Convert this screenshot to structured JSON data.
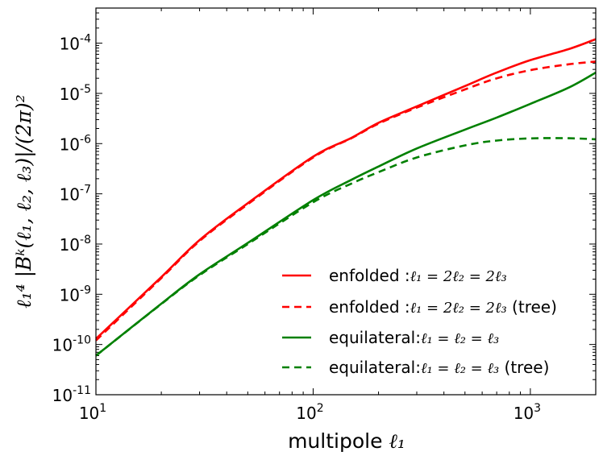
{
  "chart_data": {
    "type": "line",
    "xscale": "log",
    "yscale": "log",
    "xlim": [
      10,
      2000
    ],
    "ylim": [
      1e-11,
      0.0005
    ],
    "xlabel": "multipole",
    "xlabel_math": "ℓ₁",
    "ylabel": "ℓ₁⁴ |Bᵏ(ℓ₁, ℓ₂, ℓ₃)|/(2π)²",
    "x_major_ticks": [
      10,
      100,
      1000
    ],
    "x_tick_labels": [
      {
        "base": "10",
        "exp": "1"
      },
      {
        "base": "10",
        "exp": "2"
      },
      {
        "base": "10",
        "exp": "3"
      }
    ],
    "y_major_ticks": [
      1e-11,
      1e-10,
      1e-09,
      1e-08,
      1e-07,
      1e-06,
      1e-05,
      0.0001
    ],
    "y_tick_labels": [
      {
        "base": "10",
        "exp": "-11"
      },
      {
        "base": "10",
        "exp": "-10"
      },
      {
        "base": "10",
        "exp": "-9"
      },
      {
        "base": "10",
        "exp": "-8"
      },
      {
        "base": "10",
        "exp": "-7"
      },
      {
        "base": "10",
        "exp": "-6"
      },
      {
        "base": "10",
        "exp": "-5"
      },
      {
        "base": "10",
        "exp": "-4"
      }
    ],
    "grid": false,
    "legend_position": "lower-right",
    "series": [
      {
        "name": "enfolded :",
        "name_math": "ℓ₁ = 2ℓ₂ = 2ℓ₃",
        "name_suffix": "",
        "color": "#ff0000",
        "dash": "solid",
        "x": [
          10,
          20,
          30,
          50,
          100,
          150,
          200,
          300,
          500,
          700,
          1000,
          1500,
          2000
        ],
        "y": [
          1.3e-10,
          2.2e-09,
          1.2e-08,
          6.5e-08,
          5.5e-07,
          1.3e-06,
          2.6e-06,
          5.5e-06,
          1.4e-05,
          2.6e-05,
          4.6e-05,
          7.6e-05,
          0.00012
        ]
      },
      {
        "name": "enfolded :",
        "name_math": "ℓ₁ = 2ℓ₂ = 2ℓ₃",
        "name_suffix": " (tree)",
        "color": "#ff0000",
        "dash": "dashed",
        "x": [
          10,
          20,
          30,
          50,
          100,
          150,
          200,
          300,
          500,
          700,
          1000,
          1500,
          2000
        ],
        "y": [
          1.2e-10,
          2.1e-09,
          1.15e-08,
          6.2e-08,
          5.3e-07,
          1.28e-06,
          2.5e-06,
          5.2e-06,
          1.2e-05,
          2e-05,
          2.9e-05,
          3.8e-05,
          4.3e-05
        ]
      },
      {
        "name": "equilateral:",
        "name_math": "ℓ₁ = ℓ₂ = ℓ₃",
        "name_suffix": "",
        "color": "#008000",
        "dash": "solid",
        "x": [
          10,
          20,
          30,
          50,
          100,
          150,
          200,
          300,
          500,
          700,
          1000,
          1500,
          2000
        ],
        "y": [
          6e-11,
          6.5e-10,
          2.5e-09,
          1.05e-08,
          7.5e-08,
          1.9e-07,
          3.5e-07,
          8e-07,
          1.9e-06,
          3.3e-06,
          6.2e-06,
          1.3e-05,
          2.6e-05
        ]
      },
      {
        "name": "equilateral:",
        "name_math": "ℓ₁ = ℓ₂ = ℓ₃",
        "name_suffix": " (tree)",
        "color": "#008000",
        "dash": "dashed",
        "x": [
          10,
          20,
          30,
          50,
          100,
          150,
          200,
          300,
          500,
          700,
          1000,
          1500,
          2000
        ],
        "y": [
          6e-11,
          6.4e-10,
          2.4e-09,
          1e-08,
          6.8e-08,
          1.6e-07,
          2.7e-07,
          5.3e-07,
          9.2e-07,
          1.15e-06,
          1.27e-06,
          1.28e-06,
          1.22e-06
        ]
      }
    ]
  }
}
